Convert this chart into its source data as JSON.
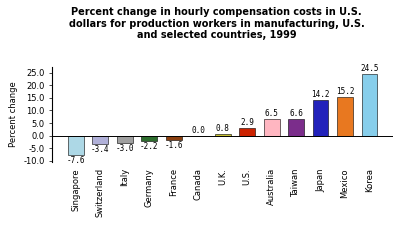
{
  "categories": [
    "Singapore",
    "Switzerland",
    "Italy",
    "Germany",
    "France",
    "Canada",
    "U.K.",
    "U.S.",
    "Australia",
    "Taiwan",
    "Japan",
    "Mexico",
    "Korea"
  ],
  "values": [
    -7.6,
    -3.4,
    -3.0,
    -2.2,
    -1.6,
    0.0,
    0.8,
    2.9,
    6.5,
    6.6,
    14.2,
    15.2,
    24.5
  ],
  "bar_colors": [
    "#add8e6",
    "#b0b0d8",
    "#a0a0a0",
    "#2e6e2e",
    "#8b4010",
    "#c8c060",
    "#c8c030",
    "#cc2200",
    "#ffb6c1",
    "#7b2d8b",
    "#2222bb",
    "#e87820",
    "#87ceeb"
  ],
  "title": "Percent change in hourly compensation costs in U.S.\ndollars for production workers in manufacturing, U.S.\nand selected countries, 1999",
  "ylabel": "Percent change",
  "ylim": [
    -10.5,
    27.5
  ],
  "yticks": [
    -10.0,
    -5.0,
    0.0,
    5.0,
    10.0,
    15.0,
    20.0,
    25.0
  ],
  "ytick_labels": [
    "-10.0",
    "-5.0",
    "0.0",
    "5.0",
    "10.0",
    "15.0",
    "20.0",
    "25.0"
  ],
  "background_color": "#ffffff",
  "title_fontsize": 7.0,
  "axis_fontsize": 6.0,
  "tick_fontsize": 6.0,
  "value_fontsize": 5.5
}
